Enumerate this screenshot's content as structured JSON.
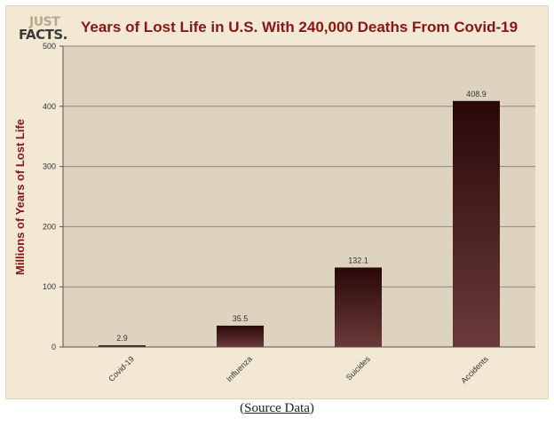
{
  "logo": {
    "line1": "JUST",
    "line2": "FACTS."
  },
  "source": {
    "open": "(",
    "link": "Source Data",
    "close": ")"
  },
  "chart_data": {
    "type": "bar",
    "title": "Years of Lost Life in U.S. With 240,000 Deaths From Covid-19",
    "xlabel": "",
    "ylabel": "Millions of Years of Lost Life",
    "categories": [
      "Covid-19",
      "Influenza",
      "Suicides",
      "Accidents"
    ],
    "values": [
      2.9,
      35.5,
      132.1,
      408.9
    ],
    "value_labels": [
      "2.9",
      "35.5",
      "132.1",
      "408.9"
    ],
    "ylim": [
      0,
      500
    ],
    "yticks": [
      0,
      100,
      200,
      300,
      400,
      500
    ],
    "grid": true,
    "legend": "none",
    "colors": {
      "plot_bg": "#ddd3bf",
      "bar_top": "#2a0808",
      "bar_bottom": "#6a3a3a",
      "title": "#8b1414",
      "grid": "#8a8a8a"
    }
  }
}
